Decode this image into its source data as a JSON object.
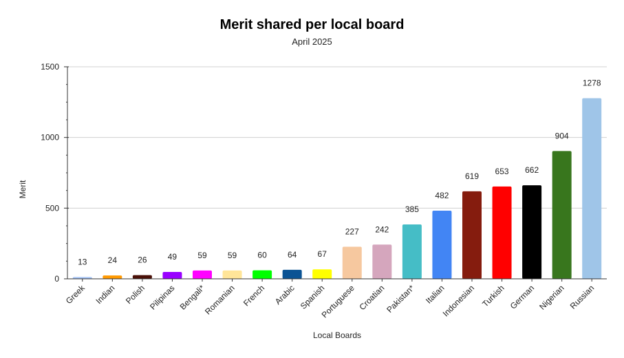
{
  "chart_data": {
    "type": "bar",
    "title": "Merit shared per local board",
    "subtitle": "April 2025",
    "xlabel": "Local Boards",
    "ylabel": "Merit",
    "ylim": [
      0,
      1500
    ],
    "yticks": [
      0,
      500,
      1000,
      1500
    ],
    "grid": true,
    "legend": "none",
    "categories": [
      "Greek",
      "Indian",
      "Polish",
      "Pilipinas",
      "Bengali*",
      "Romanian",
      "French",
      "Arabic",
      "Spanish",
      "Portuguese",
      "Croatian",
      "Pakistan*",
      "Italian",
      "Indonesian",
      "Turkish",
      "German",
      "Nigerian",
      "Russian"
    ],
    "values": [
      13,
      24,
      26,
      49,
      59,
      59,
      60,
      64,
      67,
      227,
      242,
      385,
      482,
      619,
      653,
      662,
      904,
      1278
    ],
    "colors": [
      "#a4c2f4",
      "#ff9900",
      "#4a1008",
      "#9900ff",
      "#ff00ff",
      "#ffe599",
      "#00ff00",
      "#0b5394",
      "#ffff00",
      "#f6c89f",
      "#d5a6bd",
      "#45bdc6",
      "#4285f4",
      "#851c0e",
      "#ff0000",
      "#000000",
      "#38761d",
      "#9fc5e8"
    ]
  }
}
